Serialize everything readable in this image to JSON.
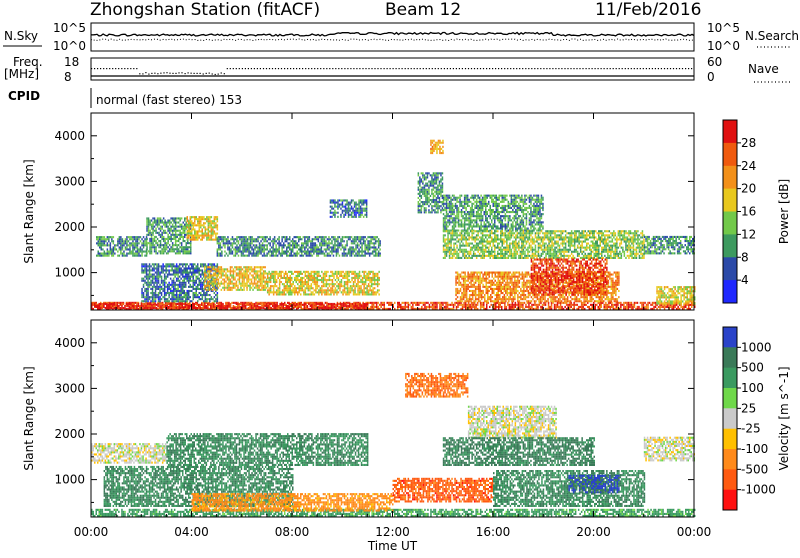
{
  "title": {
    "station": "Zhongshan Station (fitACF)",
    "beam": "Beam 12",
    "date": "11/Feb/2016"
  },
  "header_panels": {
    "nsky_label": "N.Sky",
    "nsky_ticks": [
      "10^5",
      "10^0"
    ],
    "nsearch_label": "N.Search",
    "nsearch_ticks": [
      "10^5",
      "10^0"
    ],
    "freq_label": "Freq.",
    "freq_unit": "[MHz]",
    "freq_ticks": [
      "18",
      "8"
    ],
    "nave_label": "Nave",
    "nave_ticks": [
      "60",
      "0"
    ],
    "cpid_label": "CPID",
    "cpid_text": "normal (fast stereo) 153"
  },
  "chart_data": [
    {
      "type": "heatmap",
      "name": "power",
      "xlabel": "Time UT",
      "ylabel": "Slant Range [km]",
      "ylim": [
        180,
        4500
      ],
      "xlim_hours": [
        0,
        24
      ],
      "x_ticks": [
        "00:00",
        "04:00",
        "08:00",
        "12:00",
        "16:00",
        "20:00",
        "00:00"
      ],
      "y_ticks": [
        1000,
        2000,
        3000,
        4000
      ],
      "colorbar": {
        "label": "Power [dB]",
        "levels": [
          0,
          4,
          8,
          12,
          16,
          20,
          24,
          28,
          32
        ],
        "tick_labels": [
          "4",
          "8",
          "12",
          "16",
          "20",
          "24",
          "28"
        ],
        "colors": [
          "#1f28ff",
          "#2b4aa8",
          "#3d9a5f",
          "#72c94a",
          "#e8c81e",
          "#f39019",
          "#f05a0e",
          "#e01010"
        ]
      },
      "regions": [
        {
          "t0": 0.0,
          "t1": 24.0,
          "r0": 180,
          "r1": 330,
          "value": 27
        },
        {
          "t0": 0.0,
          "t1": 11.0,
          "r0": 200,
          "r1": 320,
          "value": 30
        },
        {
          "t0": 0.2,
          "t1": 2.2,
          "r0": 1350,
          "r1": 1800,
          "value": 10
        },
        {
          "t0": 2.2,
          "t1": 4.0,
          "r0": 1400,
          "r1": 2200,
          "value": 11
        },
        {
          "t0": 3.8,
          "t1": 5.0,
          "r0": 1700,
          "r1": 2200,
          "value": 18
        },
        {
          "t0": 5.0,
          "t1": 11.5,
          "r0": 1350,
          "r1": 1800,
          "value": 9
        },
        {
          "t0": 2.0,
          "t1": 5.0,
          "r0": 350,
          "r1": 1200,
          "value": 8
        },
        {
          "t0": 4.5,
          "t1": 7.0,
          "r0": 600,
          "r1": 1100,
          "value": 19
        },
        {
          "t0": 7.0,
          "t1": 11.5,
          "r0": 500,
          "r1": 1000,
          "value": 18
        },
        {
          "t0": 9.5,
          "t1": 11.0,
          "r0": 2200,
          "r1": 2600,
          "value": 8
        },
        {
          "t0": 13.0,
          "t1": 14.0,
          "r0": 2300,
          "r1": 3200,
          "value": 10
        },
        {
          "t0": 13.5,
          "t1": 14.0,
          "r0": 3600,
          "r1": 3900,
          "value": 21
        },
        {
          "t0": 14.0,
          "t1": 18.0,
          "r0": 1900,
          "r1": 2700,
          "value": 11
        },
        {
          "t0": 14.0,
          "t1": 22.0,
          "r0": 1300,
          "r1": 1900,
          "value": 14
        },
        {
          "t0": 14.5,
          "t1": 21.0,
          "r0": 350,
          "r1": 1000,
          "value": 23
        },
        {
          "t0": 17.5,
          "t1": 20.5,
          "r0": 500,
          "r1": 1300,
          "value": 28
        },
        {
          "t0": 22.0,
          "t1": 24.0,
          "r0": 1400,
          "r1": 1800,
          "value": 10
        },
        {
          "t0": 22.5,
          "t1": 24.0,
          "r0": 300,
          "r1": 700,
          "value": 18
        }
      ]
    },
    {
      "type": "heatmap",
      "name": "velocity",
      "xlabel": "Time UT",
      "ylabel": "Slant Range [km]",
      "ylim": [
        180,
        4500
      ],
      "xlim_hours": [
        0,
        24
      ],
      "x_ticks": [
        "00:00",
        "04:00",
        "08:00",
        "12:00",
        "16:00",
        "20:00",
        "00:00"
      ],
      "y_ticks": [
        1000,
        2000,
        3000,
        4000
      ],
      "colorbar": {
        "label": "Velocity [m s^-1]",
        "tick_labels": [
          "1000",
          "500",
          "100",
          "25",
          "-25",
          "-100",
          "-500",
          "-1000"
        ],
        "colors": [
          "#2a43c9",
          "#3a7a58",
          "#3a9a60",
          "#6fd84a",
          "#cacaca",
          "#ffc000",
          "#ff8a1a",
          "#ff5a10",
          "#ff1010"
        ]
      },
      "regions": [
        {
          "t0": 0.0,
          "t1": 24.0,
          "r0": 180,
          "r1": 320,
          "value": 100
        },
        {
          "t0": 0.0,
          "t1": 3.0,
          "r0": 1350,
          "r1": 1800,
          "value": 0
        },
        {
          "t0": 0.5,
          "t1": 8.0,
          "r0": 400,
          "r1": 1300,
          "value": 300
        },
        {
          "t0": 4.0,
          "t1": 12.0,
          "r0": 300,
          "r1": 700,
          "value": -100
        },
        {
          "t0": 3.0,
          "t1": 11.0,
          "r0": 1300,
          "r1": 2000,
          "value": 300
        },
        {
          "t0": 12.0,
          "t1": 16.0,
          "r0": 500,
          "r1": 1000,
          "value": -500
        },
        {
          "t0": 12.5,
          "t1": 15.0,
          "r0": 2800,
          "r1": 3300,
          "value": -300
        },
        {
          "t0": 15.0,
          "t1": 18.5,
          "r0": 1900,
          "r1": 2600,
          "value": 0
        },
        {
          "t0": 14.0,
          "t1": 20.0,
          "r0": 1300,
          "r1": 1900,
          "value": 400
        },
        {
          "t0": 16.0,
          "t1": 22.0,
          "r0": 400,
          "r1": 1200,
          "value": 300
        },
        {
          "t0": 19.0,
          "t1": 21.0,
          "r0": 700,
          "r1": 1100,
          "value": 1000
        },
        {
          "t0": 22.0,
          "t1": 24.0,
          "r0": 1400,
          "r1": 1900,
          "value": 0
        }
      ]
    }
  ]
}
